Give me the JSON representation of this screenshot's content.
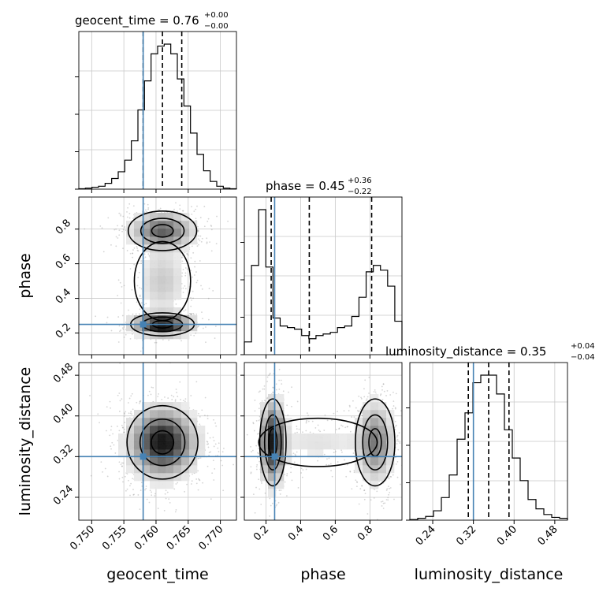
{
  "chart_data": {
    "type": "corner",
    "parameters": [
      {
        "name": "geocent_time",
        "axis_label": "geocent_time",
        "range": [
          0.748,
          0.7725
        ],
        "ticks": [
          0.75,
          0.755,
          0.76,
          0.765,
          0.77
        ],
        "tick_labels": [
          "0.750",
          "0.755",
          "0.760",
          "0.765",
          "0.770"
        ],
        "truth": 0.758,
        "quantiles": [
          0.758,
          0.761,
          0.764
        ],
        "title_main": "geocent_time = 0.76",
        "title_sup": "+0.00",
        "title_sub": "−0.00"
      },
      {
        "name": "phase",
        "axis_label": "phase",
        "range": [
          0.075,
          0.985
        ],
        "ticks": [
          0.2,
          0.4,
          0.6,
          0.8
        ],
        "tick_labels": [
          "0.2",
          "0.4",
          "0.6",
          "0.8"
        ],
        "truth": 0.25,
        "quantiles": [
          0.23,
          0.45,
          0.81
        ],
        "title_main": "phase = 0.45",
        "title_sup": "+0.36",
        "title_sub": "−0.22"
      },
      {
        "name": "luminosity_distance",
        "axis_label": "luminosity_distance",
        "range": [
          0.195,
          0.505
        ],
        "ticks": [
          0.24,
          0.32,
          0.4,
          0.48
        ],
        "tick_labels": [
          "0.24",
          "0.32",
          "0.40",
          "0.48"
        ],
        "truth": 0.32,
        "quantiles": [
          0.31,
          0.35,
          0.39
        ],
        "title_main": "luminosity_distance = 0.35",
        "title_sup": "+0.04",
        "title_sub": "−0.04"
      }
    ],
    "histograms": {
      "geocent_time": [
        0.2,
        0.5,
        1.0,
        1.5,
        3.0,
        5.5,
        9.0,
        15.0,
        25.0,
        41.0,
        56.0,
        70.0,
        74.0,
        75.0,
        70.0,
        57.0,
        43.0,
        29.0,
        18.0,
        9.5,
        4.0,
        1.5,
        0.5,
        0.2
      ],
      "phase": [
        0.08,
        0.56,
        0.91,
        0.55,
        0.23,
        0.18,
        0.17,
        0.16,
        0.12,
        0.1,
        0.12,
        0.13,
        0.14,
        0.17,
        0.18,
        0.24,
        0.36,
        0.52,
        0.56,
        0.53,
        0.43,
        0.21
      ],
      "luminosity_distance": [
        0.003,
        0.01,
        0.02,
        0.05,
        0.12,
        0.24,
        0.43,
        0.57,
        0.73,
        0.77,
        0.77,
        0.67,
        0.48,
        0.33,
        0.21,
        0.11,
        0.06,
        0.03,
        0.015,
        0.01
      ]
    },
    "density_2d": {
      "phase_vs_geocent_time": {
        "blobs": [
          {
            "x": 0.761,
            "y": 0.25,
            "sx": 0.0026,
            "sy": 0.035,
            "w": 1.0
          },
          {
            "x": 0.761,
            "y": 0.79,
            "sx": 0.0028,
            "sy": 0.06,
            "w": 0.6
          },
          {
            "x": 0.761,
            "y": 0.5,
            "sx": 0.0023,
            "sy": 0.12,
            "w": 0.2
          }
        ]
      },
      "luminosity_distance_vs_geocent_time": {
        "blobs": [
          {
            "x": 0.761,
            "y": 0.348,
            "sx": 0.0029,
            "sy": 0.038,
            "w": 1.0
          }
        ]
      },
      "luminosity_distance_vs_phase": {
        "blobs": [
          {
            "x": 0.24,
            "y": 0.348,
            "sx": 0.04,
            "sy": 0.045,
            "w": 1.0
          },
          {
            "x": 0.83,
            "y": 0.348,
            "sx": 0.06,
            "sy": 0.045,
            "w": 0.55
          },
          {
            "x": 0.5,
            "y": 0.348,
            "sx": 0.18,
            "sy": 0.025,
            "w": 0.12
          }
        ]
      }
    },
    "truth_color": "#4682b4",
    "contour_color": "#000000",
    "grid": true
  }
}
